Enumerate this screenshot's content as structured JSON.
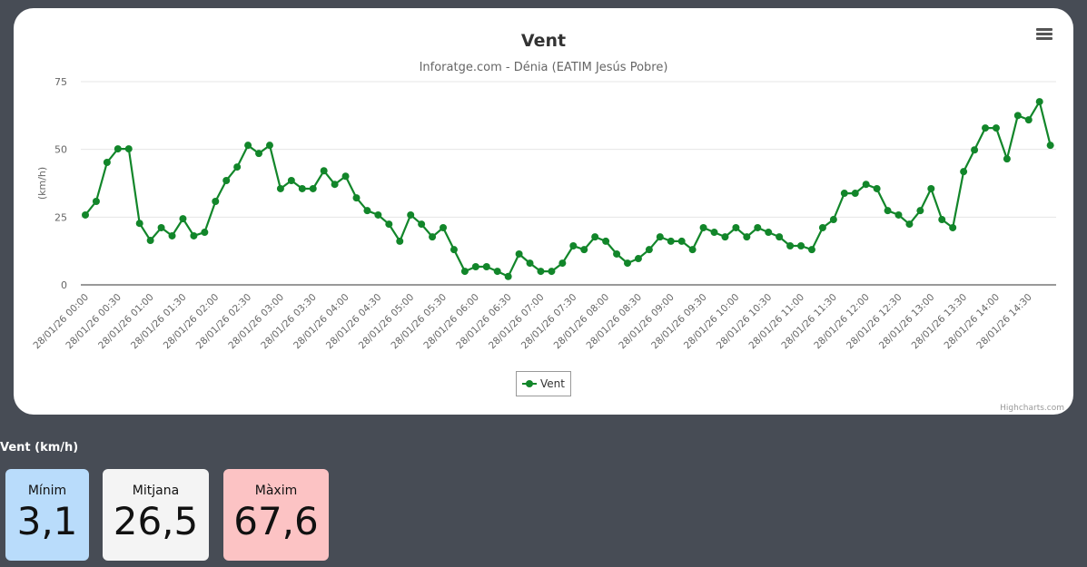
{
  "chart": {
    "title": "Vent",
    "subtitle": "Inforatge.com - Dénia (EATIM Jesús Pobre)",
    "menu_icon": "hamburger-menu-icon",
    "legend_label": "Vent",
    "credits": "Highcharts.com",
    "series_color": "#12862a"
  },
  "chart_data": {
    "type": "line",
    "title": "Vent",
    "subtitle": "Inforatge.com - Dénia (EATIM Jesús Pobre)",
    "xlabel": "",
    "ylabel": "(km/h)",
    "ylim": [
      0,
      75
    ],
    "yticks": [
      0,
      25,
      50,
      75
    ],
    "grid": true,
    "legend_position": "bottom-center",
    "x_tick_labels": [
      "28/01/26 00:00",
      "28/01/26 00:30",
      "28/01/26 01:00",
      "28/01/26 01:30",
      "28/01/26 02:00",
      "28/01/26 02:30",
      "28/01/26 03:00",
      "28/01/26 03:30",
      "28/01/26 04:00",
      "28/01/26 04:30",
      "28/01/26 05:00",
      "28/01/26 05:30",
      "28/01/26 06:00",
      "28/01/26 06:30",
      "28/01/26 07:00",
      "28/01/26 07:30",
      "28/01/26 08:00",
      "28/01/26 08:30",
      "28/01/26 09:00",
      "28/01/26 09:30",
      "28/01/26 10:00",
      "28/01/26 10:30",
      "28/01/26 11:00",
      "28/01/26 11:30",
      "28/01/26 12:00",
      "28/01/26 12:30",
      "28/01/26 13:00",
      "28/01/26 13:30",
      "28/01/26 14:00",
      "28/01/26 14:30"
    ],
    "series": [
      {
        "name": "Vent",
        "color": "#12862a",
        "values": [
          25.8,
          30.8,
          45.2,
          50.2,
          50.2,
          22.7,
          16.4,
          21.1,
          18.1,
          24.4,
          18.1,
          19.4,
          30.8,
          38.5,
          43.5,
          51.5,
          48.5,
          51.5,
          35.5,
          38.5,
          35.5,
          35.5,
          42.1,
          37.1,
          40.1,
          32.1,
          27.4,
          25.8,
          22.4,
          16.1,
          25.8,
          22.4,
          17.7,
          21.1,
          13.0,
          5.0,
          6.7,
          6.7,
          5.0,
          3.1,
          11.4,
          8.0,
          5.0,
          5.0,
          8.0,
          14.4,
          13.0,
          17.7,
          16.1,
          11.4,
          8.0,
          9.7,
          13.0,
          17.7,
          16.1,
          16.1,
          13.0,
          21.1,
          19.4,
          17.7,
          21.1,
          17.7,
          21.1,
          19.4,
          17.7,
          14.4,
          14.4,
          13.0,
          21.1,
          24.1,
          33.8,
          33.8,
          37.1,
          35.5,
          27.4,
          25.8,
          22.4,
          27.4,
          35.5,
          24.1,
          21.1,
          41.8,
          49.8,
          57.9,
          57.9,
          46.5,
          62.5,
          60.9,
          67.6,
          51.5
        ]
      }
    ]
  },
  "stats": {
    "title": "Vent (km/h)",
    "min": {
      "label": "Mínim",
      "value": "3,1",
      "color": "#b9dcfb"
    },
    "avg": {
      "label": "Mitjana",
      "value": "26,5",
      "color": "#f4f4f4"
    },
    "max": {
      "label": "Màxim",
      "value": "67,6",
      "color": "#fcc3c4"
    }
  }
}
